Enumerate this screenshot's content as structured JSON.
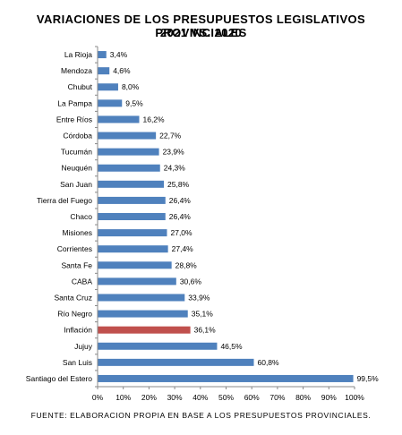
{
  "chart_data": {
    "type": "bar",
    "orientation": "horizontal",
    "title": "VARIACIONES DE LOS PRESUPUESTOS LEGISLATIVOS PROVINCIALES",
    "subtitle": "2021 VS. 2020",
    "categories": [
      "La Rioja",
      "Mendoza",
      "Chubut",
      "La Pampa",
      "Entre Ríos",
      "Córdoba",
      "Tucumán",
      "Neuquén",
      "San Juan",
      "Tierra del Fuego",
      "Chaco",
      "Misiones",
      "Corrientes",
      "Santa Fe",
      "CABA",
      "Santa Cruz",
      "Río Negro",
      "Inflación",
      "Jujuy",
      "San Luis",
      "Santiago del Estero"
    ],
    "values": [
      3.4,
      4.6,
      8.0,
      9.5,
      16.2,
      22.7,
      23.9,
      24.3,
      25.8,
      26.4,
      26.4,
      27.0,
      27.4,
      28.8,
      30.6,
      33.9,
      35.1,
      36.1,
      46.5,
      60.8,
      99.5
    ],
    "data_labels": [
      "3,4%",
      "4,6%",
      "8,0%",
      "9,5%",
      "16,2%",
      "22,7%",
      "23,9%",
      "24,3%",
      "25,8%",
      "26,4%",
      "26,4%",
      "27,0%",
      "27,4%",
      "28,8%",
      "30,6%",
      "33,9%",
      "35,1%",
      "36,1%",
      "46,5%",
      "60,8%",
      "99,5%"
    ],
    "xlim": [
      0,
      100
    ],
    "x_ticks": [
      "0%",
      "10%",
      "20%",
      "30%",
      "40%",
      "50%",
      "60%",
      "70%",
      "80%",
      "90%",
      "100%"
    ],
    "grid": false,
    "colors": {
      "default": "#4f81bd",
      "highlight": "#c0504d"
    },
    "highlight_category": "Inflación",
    "source": "FUENTE: ELABORACION PROPIA EN BASE A LOS PRESUPUESTOS PROVINCIALES."
  }
}
